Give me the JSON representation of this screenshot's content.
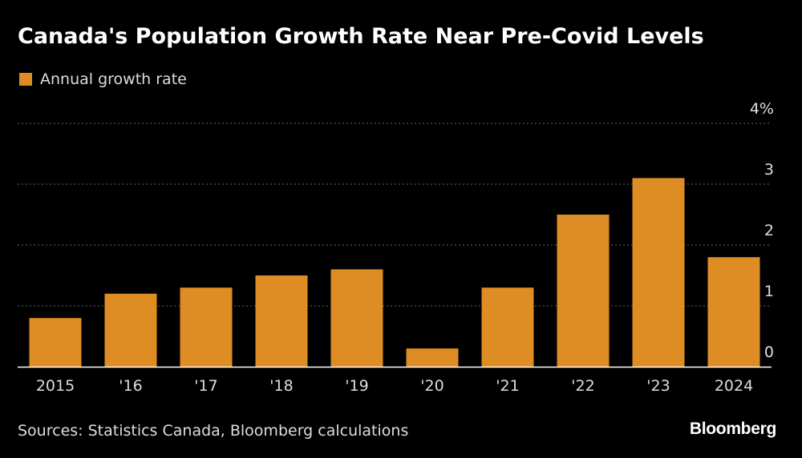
{
  "header": {
    "title": "Canada's Population Growth Rate Near Pre-Covid Levels"
  },
  "legend": {
    "label": "Annual growth rate"
  },
  "footer": {
    "source": "Sources: Statistics Canada, Bloomberg calculations",
    "brand": "Bloomberg"
  },
  "colors": {
    "bar": "#DE8C24",
    "background": "#000000",
    "grid": "#666666",
    "text": "#dddddd"
  },
  "chart_data": {
    "type": "bar",
    "categories": [
      "2015",
      "'16",
      "'17",
      "'18",
      "'19",
      "'20",
      "'21",
      "'22",
      "'23",
      "2024"
    ],
    "series": [
      {
        "name": "Annual growth rate",
        "values": [
          0.8,
          1.2,
          1.3,
          1.5,
          1.6,
          0.3,
          1.3,
          2.5,
          3.1,
          1.8
        ]
      }
    ],
    "yticks": [
      "0",
      "1",
      "2",
      "3",
      "4%"
    ],
    "ylim": [
      0,
      4
    ],
    "grid": true,
    "legend_position": "top-left"
  }
}
